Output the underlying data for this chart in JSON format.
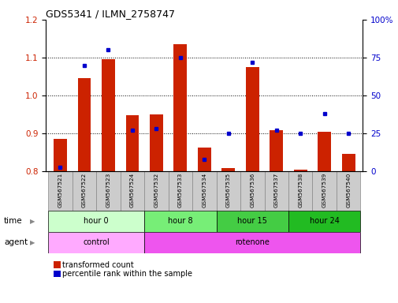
{
  "title": "GDS5341 / ILMN_2758747",
  "samples": [
    "GSM567521",
    "GSM567522",
    "GSM567523",
    "GSM567524",
    "GSM567532",
    "GSM567533",
    "GSM567534",
    "GSM567535",
    "GSM567536",
    "GSM567537",
    "GSM567538",
    "GSM567539",
    "GSM567540"
  ],
  "red_values": [
    0.885,
    1.045,
    1.095,
    0.948,
    0.95,
    1.135,
    0.862,
    0.808,
    1.075,
    0.908,
    0.805,
    0.905,
    0.845
  ],
  "blue_values": [
    2.5,
    70,
    80,
    27,
    28,
    75,
    8,
    25,
    72,
    27,
    25,
    38,
    25
  ],
  "ylim_left": [
    0.8,
    1.2
  ],
  "ylim_right": [
    0,
    100
  ],
  "yticks_left": [
    0.8,
    0.9,
    1.0,
    1.1,
    1.2
  ],
  "yticks_right": [
    0,
    25,
    50,
    75,
    100
  ],
  "yticklabels_right": [
    "0",
    "25",
    "50",
    "75",
    "100%"
  ],
  "bar_color": "#cc2200",
  "dot_color": "#0000cc",
  "bar_bottom": 0.8,
  "time_groups": [
    {
      "label": "hour 0",
      "start": 0,
      "end": 4,
      "color": "#ccffcc"
    },
    {
      "label": "hour 8",
      "start": 4,
      "end": 7,
      "color": "#77ee77"
    },
    {
      "label": "hour 15",
      "start": 7,
      "end": 10,
      "color": "#44cc44"
    },
    {
      "label": "hour 24",
      "start": 10,
      "end": 13,
      "color": "#22bb22"
    }
  ],
  "agent_groups": [
    {
      "label": "control",
      "start": 0,
      "end": 4,
      "color": "#ffaaff"
    },
    {
      "label": "rotenone",
      "start": 4,
      "end": 13,
      "color": "#ee55ee"
    }
  ],
  "time_label": "time",
  "agent_label": "agent",
  "legend_red": "transformed count",
  "legend_blue": "percentile rank within the sample",
  "grid_yticks": [
    0.9,
    1.0,
    1.1
  ],
  "bg_color": "#ffffff",
  "sample_bg": "#cccccc",
  "border_color": "#888888"
}
